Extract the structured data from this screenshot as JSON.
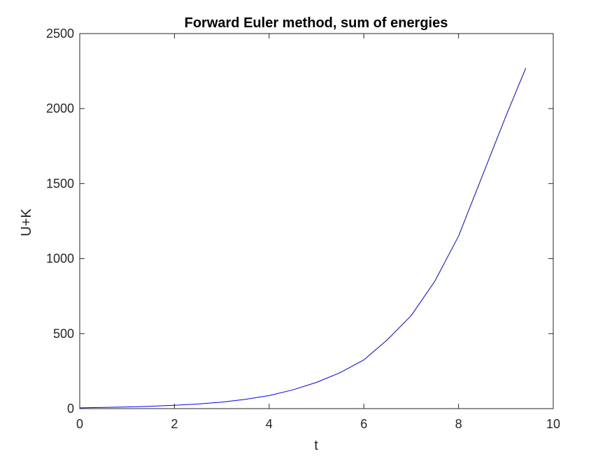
{
  "chart_data": {
    "type": "line",
    "title": "Forward Euler method, sum of energies",
    "xlabel": "t",
    "ylabel": "U+K",
    "xlim": [
      0,
      10
    ],
    "ylim": [
      0,
      2500
    ],
    "xticks": [
      0,
      2,
      4,
      6,
      8,
      10
    ],
    "yticks": [
      0,
      500,
      1000,
      1500,
      2000,
      2500
    ],
    "grid": false,
    "series": [
      {
        "color": "#0000ff",
        "x": [
          0,
          0.5,
          1,
          1.5,
          2,
          2.5,
          3,
          3.5,
          4,
          4.5,
          5,
          5.5,
          6,
          6.5,
          7,
          7.5,
          8,
          8.5,
          9,
          9.42
        ],
        "y": [
          5,
          8,
          11,
          16,
          22,
          31,
          43,
          62,
          87,
          125,
          175,
          240,
          325,
          460,
          620,
          850,
          1150,
          1550,
          1950,
          2270
        ]
      }
    ]
  }
}
